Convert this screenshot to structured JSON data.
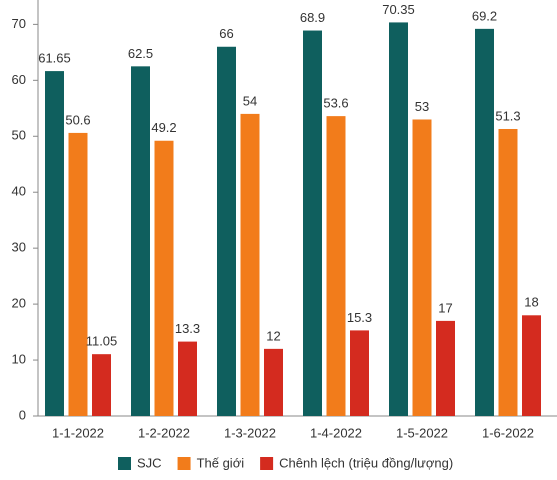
{
  "chart_data": {
    "type": "bar",
    "categories": [
      "1-1-2022",
      "1-2-2022",
      "1-3-2022",
      "1-4-2022",
      "1-5-2022",
      "1-6-2022"
    ],
    "series": [
      {
        "name": "SJC",
        "color": "#0f5f5e",
        "values": [
          61.65,
          62.5,
          66,
          68.9,
          70.35,
          69.2
        ]
      },
      {
        "name": "Thế giới",
        "color": "#f27c1b",
        "values": [
          50.6,
          49.2,
          54,
          53.6,
          53,
          51.3
        ]
      },
      {
        "name": "Chênh lệch (triệu đồng/lượng)",
        "color": "#d42b1f",
        "values": [
          11.05,
          13.3,
          12,
          15.3,
          17,
          18
        ]
      }
    ],
    "ylim": [
      0,
      74
    ],
    "yticks": [
      0,
      10,
      20,
      30,
      40,
      50,
      60,
      70
    ],
    "legend": "bottom"
  }
}
